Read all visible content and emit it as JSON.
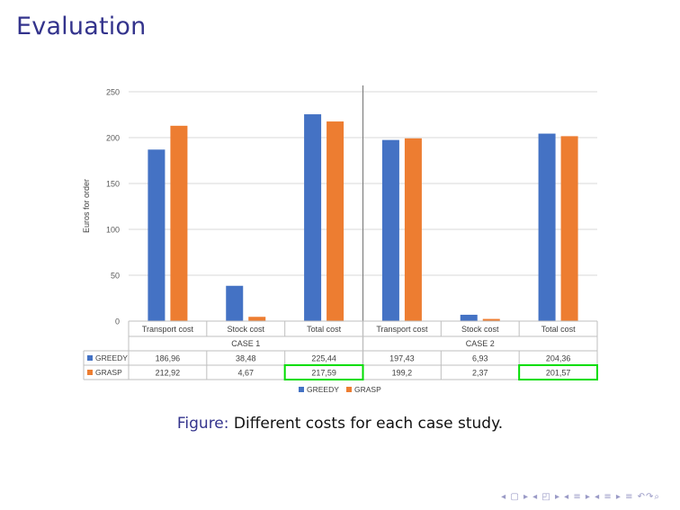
{
  "slide": {
    "title": "Evaluation",
    "caption_label": "Figure:",
    "caption_text": "Different costs for each case study.",
    "nav_symbols": "◂ ▢ ▸ ◂ ◰ ▸ ◂ ≡ ▸ ◂ ≡ ▸   ≡   ↶↷⌕"
  },
  "colors": {
    "greedy": "#4472c4",
    "grasp": "#ed7d31",
    "highlight": "#00dd00",
    "title": "#33338c"
  },
  "chart_data": {
    "type": "bar",
    "ylabel": "Euros for order",
    "ylim": [
      0,
      250
    ],
    "yticks": [
      0,
      50,
      100,
      150,
      200,
      250
    ],
    "groups": [
      {
        "name": "CASE 1",
        "categories": [
          "Transport cost",
          "Stock cost",
          "Total cost"
        ]
      },
      {
        "name": "CASE 2",
        "categories": [
          "Transport cost",
          "Stock cost",
          "Total cost"
        ]
      }
    ],
    "series": [
      {
        "name": "GREEDY",
        "values": [
          186.96,
          38.48,
          225.44,
          197.43,
          6.93,
          204.36
        ],
        "labels": [
          "186,96",
          "38,48",
          "225,44",
          "197,43",
          "6,93",
          "204,36"
        ]
      },
      {
        "name": "GRASP",
        "values": [
          212.92,
          4.67,
          217.59,
          199.2,
          2.37,
          201.57
        ],
        "labels": [
          "212,92",
          "4,67",
          "217,59",
          "199,2",
          "2,37",
          "201,57"
        ]
      }
    ],
    "highlighted_cells": [
      {
        "series": 1,
        "index": 2
      },
      {
        "series": 1,
        "index": 5
      }
    ],
    "legend": [
      "GREEDY",
      "GRASP"
    ],
    "grid": true,
    "legend_position": "bottom"
  }
}
